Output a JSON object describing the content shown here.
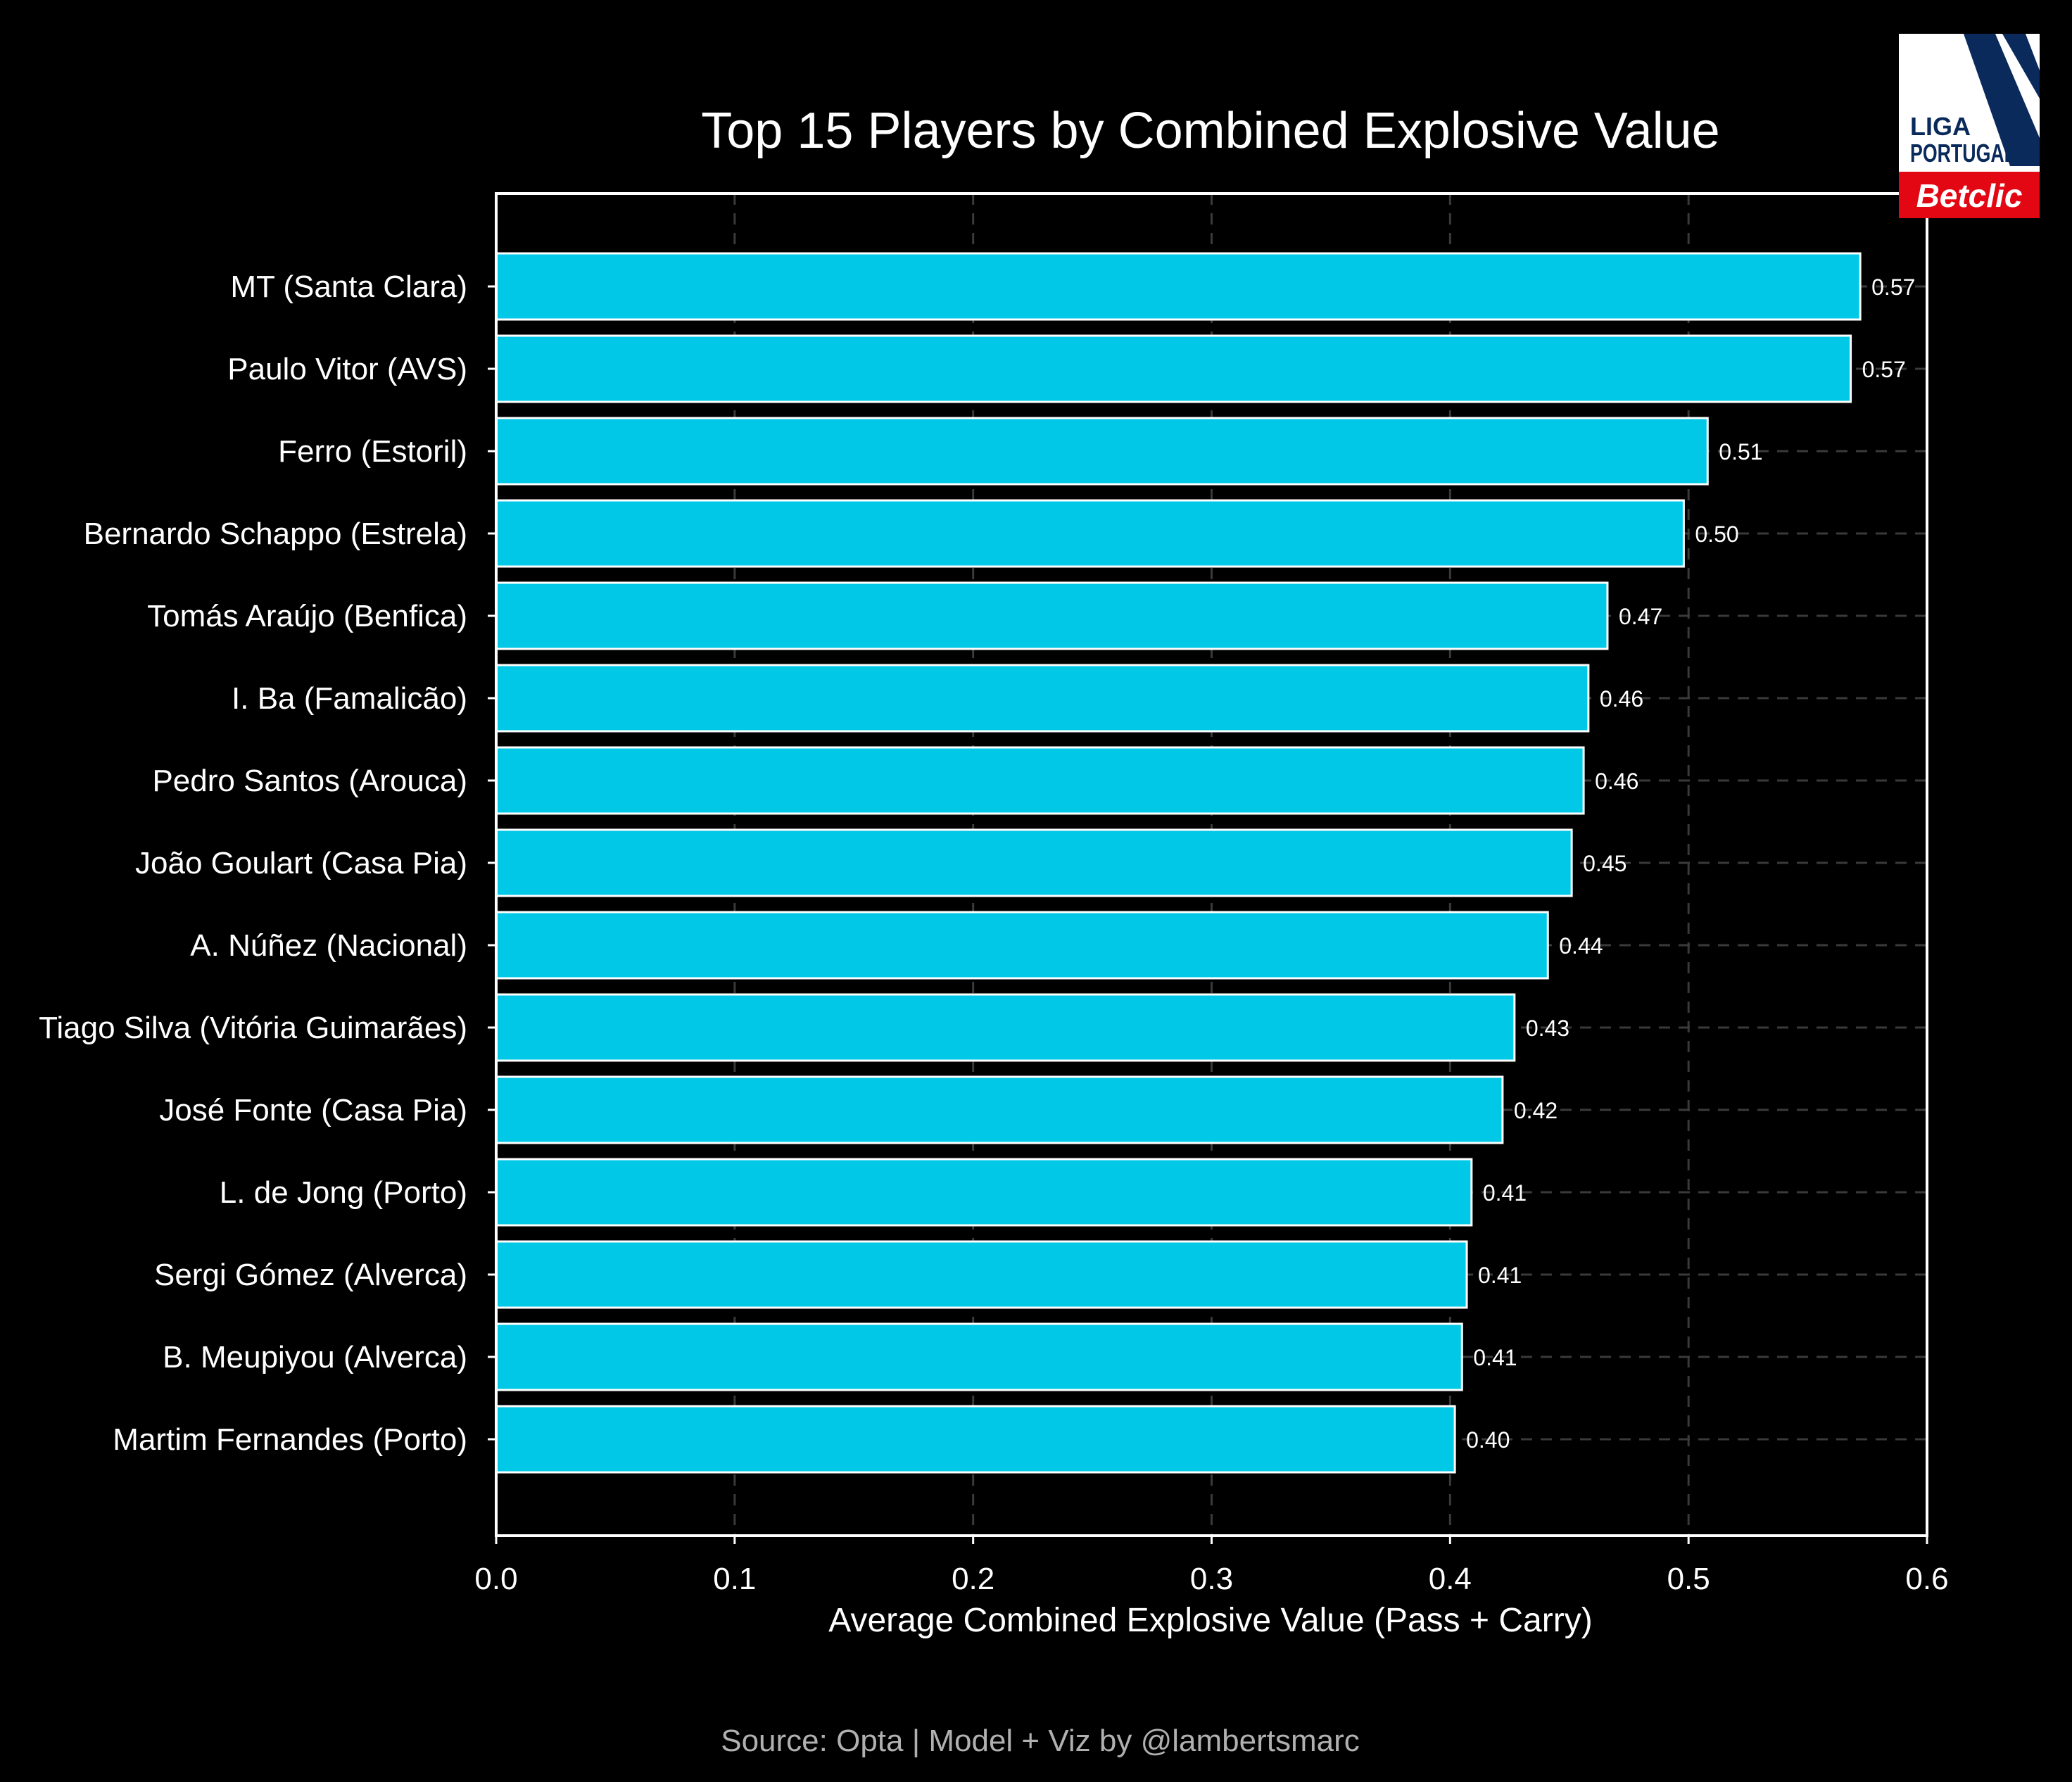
{
  "colors": {
    "background": "#000000",
    "bar_fill": "#00c8e6",
    "bar_stroke": "#ffffff",
    "text": "#ffffff",
    "source_text": "#b0b0b0",
    "grid": "#3a3a3a",
    "logo_navy": "#0a2a5c",
    "logo_red": "#e30613"
  },
  "logo": {
    "line1": "LIGA",
    "line2": "PORTUGAL",
    "brand": "Betclic"
  },
  "source": "Source: Opta | Model + Viz by @lambertsmarc",
  "chart_data": {
    "type": "bar",
    "orientation": "horizontal",
    "title": "Top 15 Players by Combined Explosive Value",
    "xlabel": "Average Combined Explosive Value (Pass + Carry)",
    "ylabel": "",
    "xlim": [
      0.0,
      0.6
    ],
    "xticks": [
      "0.0",
      "0.1",
      "0.2",
      "0.3",
      "0.4",
      "0.5",
      "0.6"
    ],
    "grid": true,
    "categories": [
      "MT (Santa Clara)",
      "Paulo Vitor (AVS)",
      "Ferro (Estoril)",
      "Bernardo Schappo (Estrela)",
      "Tomás Araújo (Benfica)",
      "I. Ba (Famalicão)",
      "Pedro Santos (Arouca)",
      "João Goulart (Casa Pia)",
      "A. Núñez (Nacional)",
      "Tiago Silva (Vitória Guimarães)",
      "José Fonte (Casa Pia)",
      "L. de Jong (Porto)",
      "Sergi Gómez (Alverca)",
      "B. Meupiyou (Alverca)",
      "Martim Fernandes (Porto)"
    ],
    "values": [
      0.572,
      0.568,
      0.508,
      0.498,
      0.466,
      0.458,
      0.456,
      0.451,
      0.441,
      0.427,
      0.422,
      0.409,
      0.407,
      0.405,
      0.402
    ],
    "value_labels": [
      "0.57",
      "0.57",
      "0.51",
      "0.50",
      "0.47",
      "0.46",
      "0.46",
      "0.45",
      "0.44",
      "0.43",
      "0.42",
      "0.41",
      "0.41",
      "0.41",
      "0.40"
    ]
  }
}
